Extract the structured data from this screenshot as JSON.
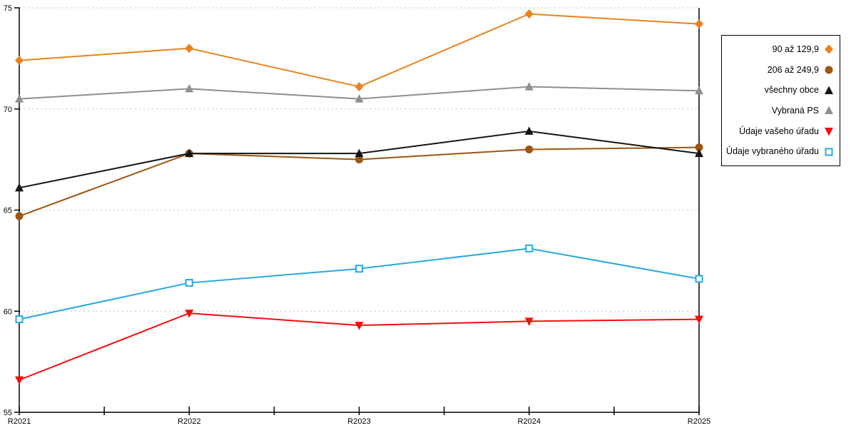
{
  "page": {
    "background": "#FFFFFF"
  },
  "chart_data": {
    "type": "line",
    "title": "",
    "xlabel": "",
    "ylabel": "",
    "categories": [
      "R2021",
      "R2022",
      "R2023",
      "R2024",
      "R2025"
    ],
    "series": [
      {
        "name": "90 až 129,9",
        "marker": "diamond",
        "color": "#E8821E",
        "values": [
          72.4,
          73.0,
          71.1,
          74.7,
          74.2
        ]
      },
      {
        "name": "206 až 249,9",
        "marker": "circle",
        "color": "#9E5513",
        "values": [
          64.7,
          67.8,
          67.5,
          68.0,
          68.1
        ]
      },
      {
        "name": "všechny obce",
        "marker": "triangle-up",
        "color": "#141414",
        "values": [
          66.1,
          67.8,
          67.8,
          68.9,
          67.8
        ]
      },
      {
        "name": "Vybraná PS",
        "marker": "triangle-up",
        "color": "#8F8F8F",
        "values": [
          70.5,
          71.0,
          70.5,
          71.1,
          70.9
        ]
      },
      {
        "name": "Údaje vašeho úřadu",
        "marker": "triangle-down",
        "color": "#F60D0D",
        "values": [
          56.6,
          59.9,
          59.3,
          59.5,
          59.6
        ]
      },
      {
        "name": "Údaje vybraného úřadu",
        "marker": "square-open",
        "color": "#29A8DE",
        "values": [
          59.6,
          61.4,
          62.1,
          63.1,
          61.6
        ]
      }
    ],
    "ylim": [
      55,
      75
    ],
    "yticks": [
      55,
      60,
      65,
      70,
      75
    ],
    "grid": {
      "horizontal": true,
      "style": "dashed",
      "color": "#C4C4C4"
    },
    "axis_color": "#000000",
    "tick_label_color": "#000000",
    "legend_position": "right",
    "legend_border_color": "#000000"
  }
}
